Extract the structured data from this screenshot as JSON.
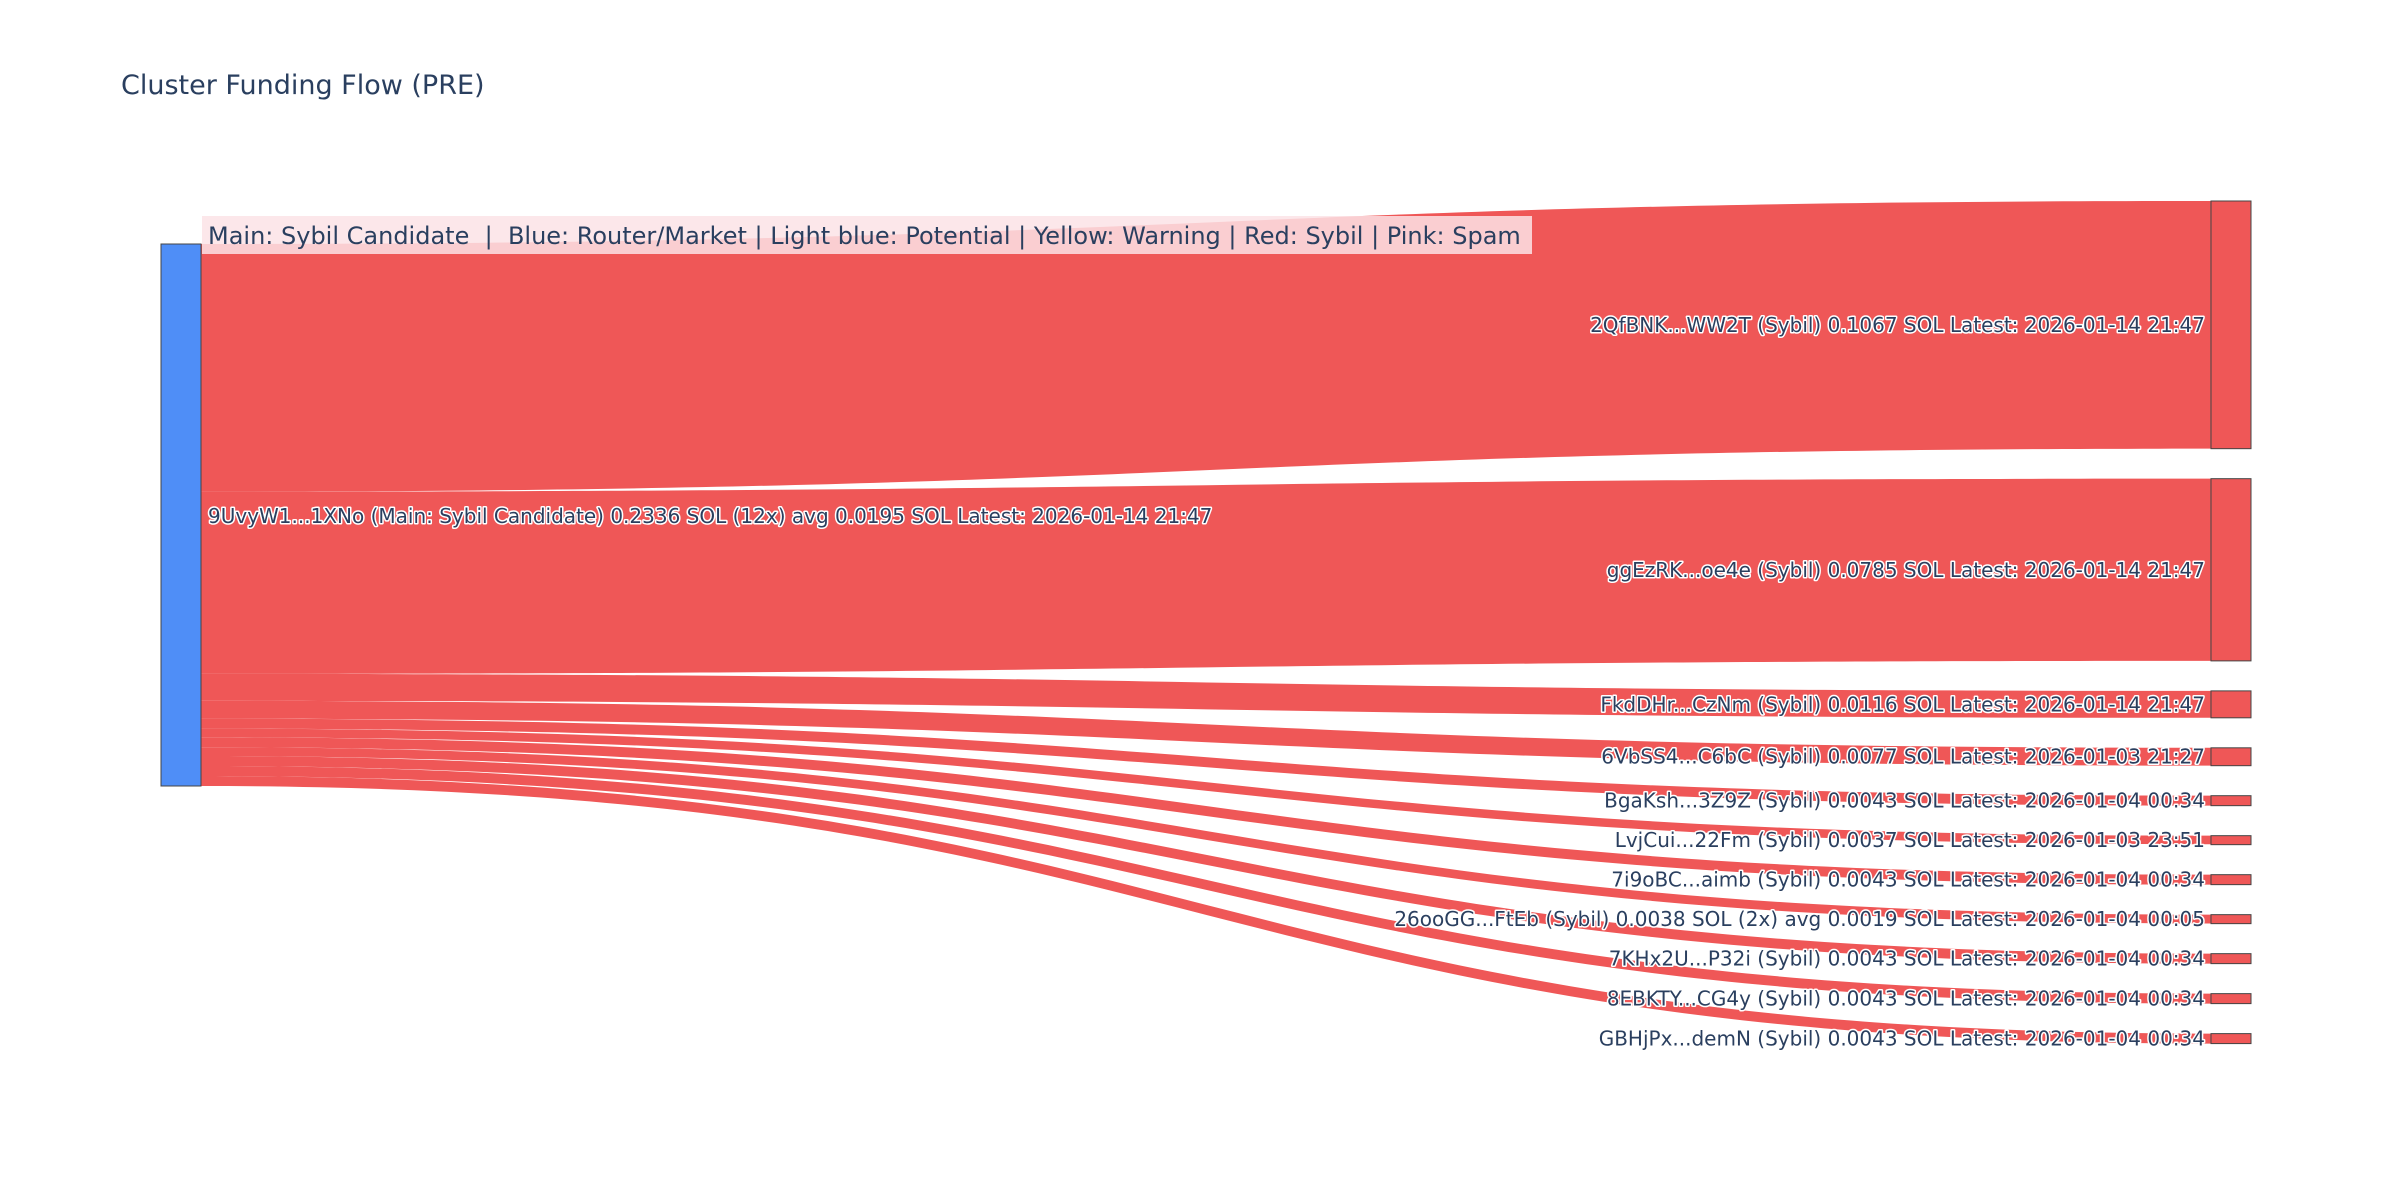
{
  "chart_data": {
    "type": "sankey",
    "title": "Cluster Funding Flow (PRE)",
    "legend_note": "Main: Sybil Candidate  |  Blue: Router/Market | Light blue: Potential | Yellow: Warning | Red: Sybil | Pink: Spam",
    "colors": {
      "source_node": "#4f8ef7",
      "link": "#ef5757",
      "target_node": "#ef5757",
      "node_border": "#444444",
      "note_bg": "#fbe3e6"
    },
    "source": {
      "label": "9UvyW1...1XNo (Main: Sybil Candidate) 0.2336 SOL (12x) avg 0.0195 SOL Latest: 2026-01-14 21:47",
      "value": 0.2336
    },
    "targets": [
      {
        "label": "2QfBNK...WW2T (Sybil) 0.1067 SOL Latest: 2026-01-14 21:47",
        "value": 0.1067
      },
      {
        "label": "ggEzRK...oe4e (Sybil) 0.0785 SOL Latest: 2026-01-14 21:47",
        "value": 0.0785
      },
      {
        "label": "FkdDHr...CzNm (Sybil) 0.0116 SOL Latest: 2026-01-14 21:47",
        "value": 0.0116
      },
      {
        "label": "6VbSS4...C6bC (Sybil) 0.0077 SOL Latest: 2026-01-03 21:27",
        "value": 0.0077
      },
      {
        "label": "BgaKsh...3Z9Z (Sybil) 0.0043 SOL Latest: 2026-01-04 00:34",
        "value": 0.0043
      },
      {
        "label": "LvjCui...22Fm (Sybil) 0.0037 SOL Latest: 2026-01-03 23:51",
        "value": 0.0037
      },
      {
        "label": "7i9oBC...aimb (Sybil) 0.0043 SOL Latest: 2026-01-04 00:34",
        "value": 0.0043
      },
      {
        "label": "26ooGG...FtEb (Sybil) 0.0038 SOL (2x) avg 0.0019 SOL Latest: 2026-01-04 00:05",
        "value": 0.0038
      },
      {
        "label": "7KHx2U...P32i (Sybil) 0.0043 SOL Latest: 2026-01-04 00:34",
        "value": 0.0043
      },
      {
        "label": "8EBKTY...CG4y (Sybil) 0.0043 SOL Latest: 2026-01-04 00:34",
        "value": 0.0043
      },
      {
        "label": "GBHjPx...demN (Sybil) 0.0043 SOL Latest: 2026-01-04 00:34",
        "value": 0.0043
      }
    ]
  }
}
